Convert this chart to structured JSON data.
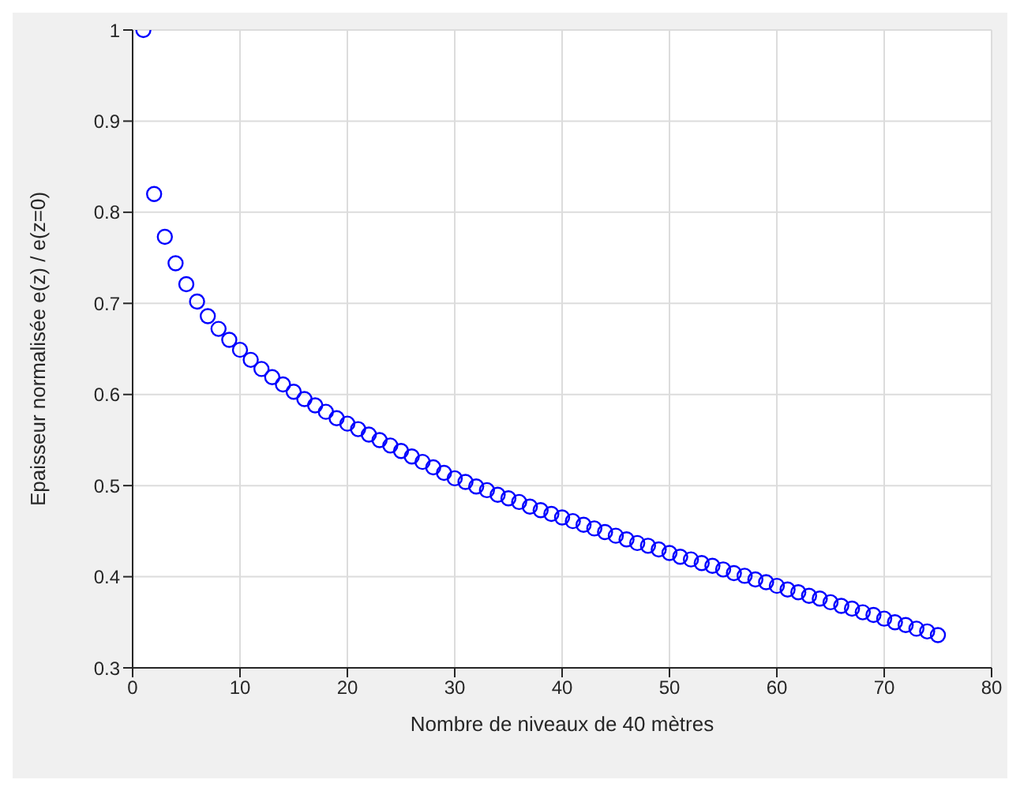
{
  "chart_data": {
    "type": "scatter",
    "xlabel": "Nombre de niveaux de 40 mètres",
    "ylabel": "Epaisseur normalisée e(z) / e(z=0)",
    "x": [
      1,
      2,
      3,
      4,
      5,
      6,
      7,
      8,
      9,
      10,
      11,
      12,
      13,
      14,
      15,
      16,
      17,
      18,
      19,
      20,
      21,
      22,
      23,
      24,
      25,
      26,
      27,
      28,
      29,
      30,
      31,
      32,
      33,
      34,
      35,
      36,
      37,
      38,
      39,
      40,
      41,
      42,
      43,
      44,
      45,
      46,
      47,
      48,
      49,
      50,
      51,
      52,
      53,
      54,
      55,
      56,
      57,
      58,
      59,
      60,
      61,
      62,
      63,
      64,
      65,
      66,
      67,
      68,
      69,
      70,
      71,
      72,
      73,
      74,
      75
    ],
    "series": [
      {
        "color": "#0000ff",
        "values": [
          1.0,
          0.82,
          0.773,
          0.744,
          0.721,
          0.702,
          0.686,
          0.672,
          0.66,
          0.649,
          0.638,
          0.628,
          0.619,
          0.611,
          0.603,
          0.595,
          0.588,
          0.581,
          0.574,
          0.568,
          0.562,
          0.556,
          0.55,
          0.544,
          0.538,
          0.532,
          0.526,
          0.52,
          0.514,
          0.508,
          0.504,
          0.499,
          0.495,
          0.49,
          0.486,
          0.482,
          0.477,
          0.473,
          0.469,
          0.465,
          0.461,
          0.457,
          0.453,
          0.449,
          0.445,
          0.441,
          0.437,
          0.434,
          0.43,
          0.426,
          0.422,
          0.419,
          0.415,
          0.412,
          0.408,
          0.404,
          0.401,
          0.397,
          0.394,
          0.39,
          0.386,
          0.383,
          0.379,
          0.376,
          0.372,
          0.368,
          0.365,
          0.361,
          0.358,
          0.354,
          0.35,
          0.347,
          0.343,
          0.34,
          0.336
        ]
      }
    ],
    "xlim": [
      0,
      80
    ],
    "xticks": [
      0,
      10,
      20,
      30,
      40,
      50,
      60,
      70,
      80
    ],
    "ylim": [
      0.3,
      1
    ],
    "yticks": [
      0.3,
      0.4,
      0.5,
      0.6,
      0.7,
      0.8,
      0.9,
      1
    ],
    "grid": true,
    "marker": "circle"
  }
}
